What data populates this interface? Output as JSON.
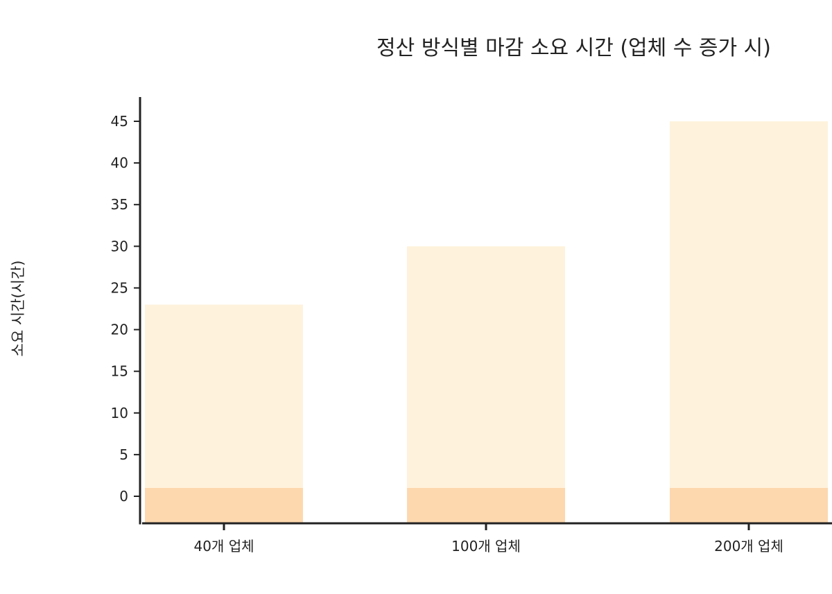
{
  "chart_data": {
    "type": "bar",
    "title": "정산 방식별 마감 소요 시간 (업체 수 증가 시)",
    "xlabel": "",
    "ylabel": "소요 시간(시간)",
    "categories": [
      "40개 업체",
      "100개 업체",
      "200개 업체"
    ],
    "series": [
      {
        "values": [
          1,
          1,
          1
        ],
        "color": "#FDD8AE"
      },
      {
        "values": [
          22,
          29,
          44
        ],
        "color": "#FEF2DC"
      }
    ],
    "totals": [
      23,
      30,
      45
    ],
    "ylim": [
      -3,
      48
    ],
    "yticks": [
      0,
      5,
      10,
      15,
      20,
      25,
      30,
      35,
      40,
      45
    ],
    "grid": false,
    "axis_color": "#222222"
  }
}
